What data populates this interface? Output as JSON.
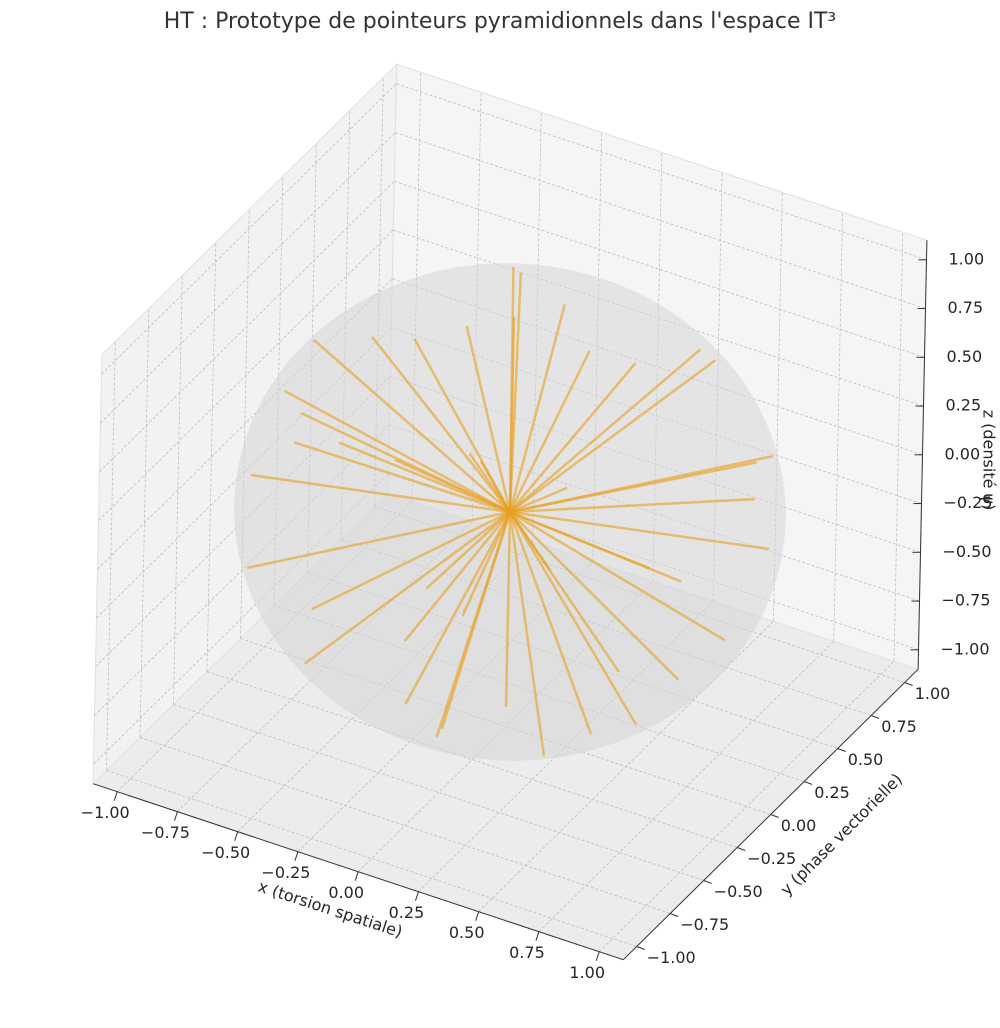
{
  "chart_data": {
    "type": "rays3d",
    "title": "HT : Prototype de pointeurs pyramidionnels dans l'espace IT³",
    "xlabel": "x (torsion spatiale)",
    "ylabel": "y (phase vectorielle)",
    "zlabel": "z (densité ψ)",
    "xlim": [
      -1.1,
      1.1
    ],
    "ylim": [
      -1.1,
      1.1
    ],
    "zlim": [
      -1.1,
      1.1
    ],
    "xticks": [
      {
        "value": -1,
        "label": "−1.00"
      },
      {
        "value": -0.75,
        "label": "−0.75"
      },
      {
        "value": -0.5,
        "label": "−0.50"
      },
      {
        "value": -0.25,
        "label": "−0.25"
      },
      {
        "value": 0,
        "label": "0.00"
      },
      {
        "value": 0.25,
        "label": "0.25"
      },
      {
        "value": 0.5,
        "label": "0.50"
      },
      {
        "value": 0.75,
        "label": "0.75"
      },
      {
        "value": 1,
        "label": "1.00"
      }
    ],
    "yticks": [
      {
        "value": -1,
        "label": "−1.00"
      },
      {
        "value": -0.75,
        "label": "−0.75"
      },
      {
        "value": -0.5,
        "label": "−0.50"
      },
      {
        "value": -0.25,
        "label": "−0.25"
      },
      {
        "value": 0,
        "label": "0.00"
      },
      {
        "value": 0.25,
        "label": "0.25"
      },
      {
        "value": 0.5,
        "label": "0.50"
      },
      {
        "value": 0.75,
        "label": "0.75"
      },
      {
        "value": 1,
        "label": "1.00"
      }
    ],
    "zticks": [
      {
        "value": -1,
        "label": "−1.00"
      },
      {
        "value": -0.75,
        "label": "−0.75"
      },
      {
        "value": -0.5,
        "label": "−0.50"
      },
      {
        "value": -0.25,
        "label": "−0.25"
      },
      {
        "value": 0,
        "label": "0.00"
      },
      {
        "value": 0.25,
        "label": "0.25"
      },
      {
        "value": 0.5,
        "label": "0.50"
      },
      {
        "value": 0.75,
        "label": "0.75"
      },
      {
        "value": 1,
        "label": "1.00"
      }
    ],
    "grid": true,
    "sphere": {
      "radius": 1,
      "color": "#d6d6d6"
    },
    "rays": {
      "color": "#e8a020",
      "x": [
        0.9,
        -0.8,
        0.3,
        -0.2,
        0.5,
        -0.6,
        0.7,
        -0.5,
        0.1,
        -0.1,
        0.95,
        -0.95,
        0.4,
        -0.4,
        0.6,
        -0.3,
        0.2,
        -0.7,
        0.8,
        -0.8,
        0.3,
        -0.3,
        0.55,
        -0.55,
        0.85,
        -0.6,
        0.1,
        -0.2,
        0.65,
        -0.75,
        0.45,
        -0.45,
        0.2,
        -0.1,
        0.9,
        -0.9,
        0.35,
        -0.25,
        0.7,
        -0.7,
        0.15,
        -0.85,
        0,
        0
      ],
      "y": [
        0.2,
        0.4,
        -0.9,
        0.8,
        0.5,
        -0.5,
        -0.3,
        0.3,
        0.2,
        -0.3,
        -0.1,
        0.1,
        0.8,
        -0.8,
        0.2,
        0.6,
        -0.6,
        -0.2,
        0.5,
        -0.5,
        0.3,
        -0.2,
        -0.7,
        0.7,
        0.3,
        0.75,
        -0.95,
        0.95,
        -0.55,
        -0.35,
        0.1,
        0.05,
        0.7,
        -0.7,
        -0.35,
        0.35,
        -0.35,
        0.45,
        0.7,
        -0.7,
        -0.8,
        0.05,
        0,
        0
      ],
      "z": [
        0.3,
        0.3,
        0.2,
        -0.5,
        0.7,
        0.6,
        -0.6,
        -0.8,
        0.97,
        -0.95,
        -0.2,
        -0.1,
        0.4,
        -0.4,
        -0.75,
        0.7,
        0.75,
        -0.65,
        -0.2,
        0.2,
        -0.9,
        0.9,
        0.4,
        -0.4,
        0.4,
        0.2,
        -0.3,
        0.1,
        -0.5,
        0.55,
        0.88,
        -0.88,
        -0.68,
        0.7,
        0.25,
        -0.25,
        -0.87,
        0.85,
        0.1,
        -0.1,
        -0.55,
        0.5,
        1,
        -1
      ]
    }
  }
}
